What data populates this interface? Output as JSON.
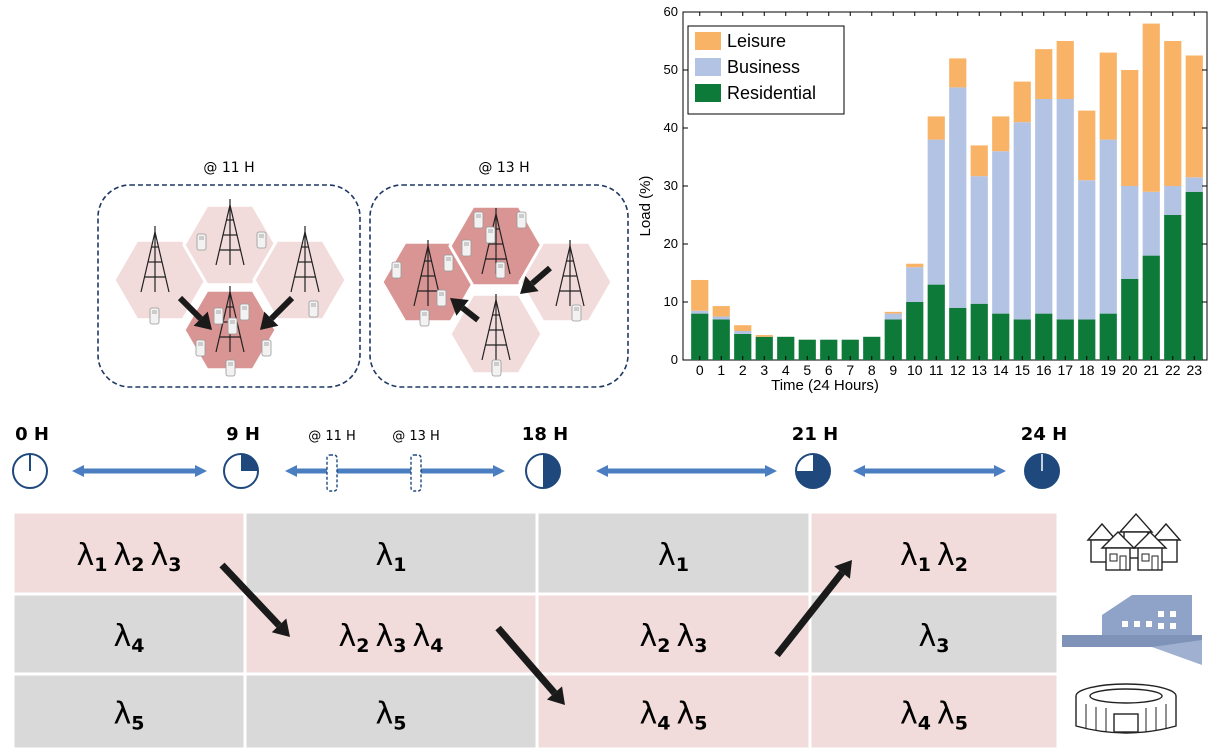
{
  "cells_panel": {
    "left_label": "@ 11 H",
    "right_label": "@ 13 H"
  },
  "timeline": {
    "marks": [
      "0 H",
      "9 H",
      "18 H",
      "21 H",
      "24 H"
    ],
    "clock_fractions": [
      0,
      0.25,
      0.5,
      0.75,
      1
    ],
    "snapshots": [
      "@ 11 H",
      "@ 13 H"
    ]
  },
  "table": {
    "rows": [
      {
        "name": "residential",
        "cells": [
          [
            "1",
            "2",
            "3"
          ],
          [
            "1"
          ],
          [
            "1"
          ],
          [
            "1",
            "2"
          ]
        ],
        "highlight": [
          true,
          false,
          false,
          true
        ]
      },
      {
        "name": "business",
        "cells": [
          [
            "4"
          ],
          [
            "2",
            "3",
            "4"
          ],
          [
            "2",
            "3"
          ],
          [
            "3"
          ]
        ],
        "highlight": [
          false,
          true,
          true,
          false
        ]
      },
      {
        "name": "leisure",
        "cells": [
          [
            "5"
          ],
          [
            "5"
          ],
          [
            "4",
            "5"
          ],
          [
            "4",
            "5"
          ]
        ],
        "highlight": [
          false,
          false,
          true,
          true
        ]
      }
    ],
    "symbol": "λ",
    "colors": {
      "highlight": "#f2dcdb",
      "normal": "#d9d9d9"
    }
  },
  "chart_data": {
    "type": "bar",
    "stacked": true,
    "categories": [
      "0",
      "1",
      "2",
      "3",
      "4",
      "5",
      "6",
      "7",
      "8",
      "9",
      "10",
      "11",
      "12",
      "13",
      "14",
      "15",
      "16",
      "17",
      "18",
      "19",
      "20",
      "21",
      "22",
      "23"
    ],
    "series": [
      {
        "name": "Residential",
        "color": "#0e7a3a",
        "values": [
          8,
          7,
          4.5,
          4,
          4,
          3.5,
          3.5,
          3.5,
          4,
          7,
          10,
          13,
          9,
          9.7,
          8,
          7,
          8,
          7,
          7,
          8,
          14,
          18,
          25,
          29
        ]
      },
      {
        "name": "Business",
        "color": "#b3c3e3",
        "values": [
          0.5,
          0.5,
          0.5,
          0,
          0,
          0,
          0,
          0,
          0,
          1,
          6,
          25,
          38,
          22,
          28,
          34,
          37,
          38,
          24,
          30,
          16,
          11,
          5,
          2.5
        ]
      },
      {
        "name": "Leisure",
        "color": "#f9b367",
        "values": [
          5.3,
          1.8,
          1,
          0.3,
          0,
          0,
          0,
          0,
          0,
          0.3,
          0.6,
          4,
          5,
          5.3,
          6,
          7,
          8.6,
          10,
          12,
          15,
          20,
          29,
          25,
          21
        ]
      }
    ],
    "legend_order": [
      "Leisure",
      "Business",
      "Residential"
    ],
    "legend_position": "top-left",
    "xlabel": "Time (24 Hours)",
    "ylabel": "Load (%)",
    "ylim": [
      0,
      60
    ],
    "yticks": [
      0,
      10,
      20,
      30,
      40,
      50,
      60
    ]
  }
}
